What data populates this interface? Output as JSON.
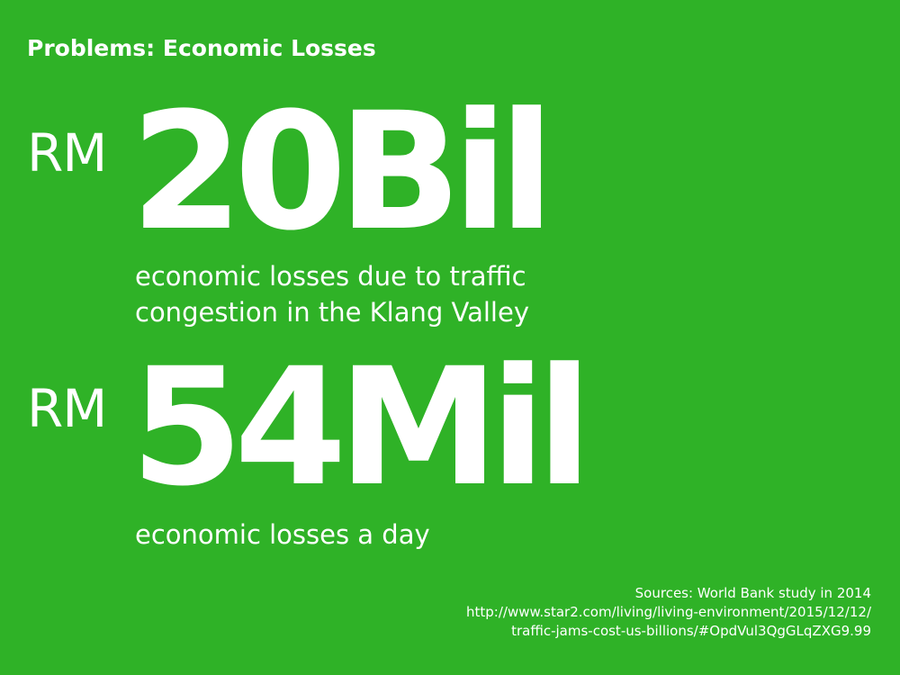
{
  "slide": {
    "title": "Problems: Economic Losses",
    "background_color": "#2fb227",
    "text_color": "#ffffff",
    "stats": [
      {
        "currency": "RM",
        "value": "20Bil",
        "description_lines": [
          "economic losses due to traffic",
          "congestion in the Klang Valley"
        ]
      },
      {
        "currency": "RM",
        "value": "54Mil",
        "description_lines": [
          "economic losses a day"
        ]
      }
    ],
    "sources": [
      "Sources: World Bank study in 2014",
      "http://www.star2.com/living/living-environment/2015/12/12/",
      "traffic-jams-cost-us-billions/#OpdVul3QgGLqZXG9.99"
    ]
  }
}
